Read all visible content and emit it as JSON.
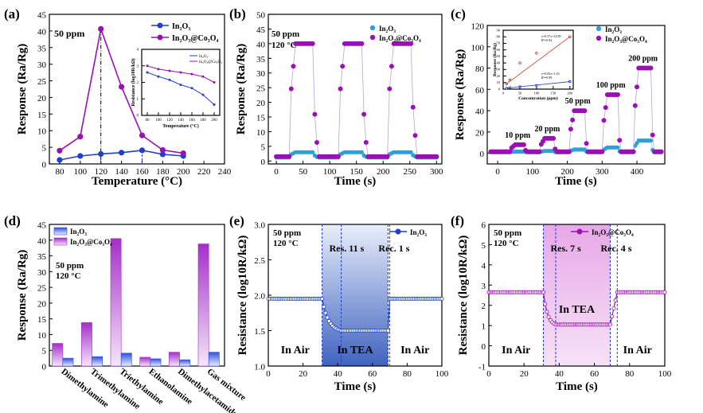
{
  "chart_data": [
    {
      "panel": "(a)",
      "type": "line",
      "annotation": "50 ppm",
      "xlabel": "Temperature (°C)",
      "ylabel": "Response (Ra/Rg)",
      "xlim": [
        70,
        240
      ],
      "ylim": [
        0,
        45
      ],
      "xticks": [
        80,
        100,
        120,
        140,
        160,
        180,
        200,
        220,
        240
      ],
      "yticks": [
        0,
        5,
        10,
        15,
        20,
        25,
        30,
        35,
        40,
        45
      ],
      "x": [
        80,
        100,
        120,
        140,
        160,
        180,
        200
      ],
      "series": [
        {
          "name": "In₂O₃",
          "color": "#1f3fcf",
          "values": [
            1.2,
            2.4,
            3.0,
            3.4,
            4.1,
            2.9,
            2.4
          ]
        },
        {
          "name": "In₂O₃@Co₃O₄",
          "color": "#9a10b4",
          "values": [
            4.0,
            8.2,
            40.6,
            23.2,
            8.6,
            4.2,
            3.2
          ]
        }
      ],
      "inset": {
        "type": "line",
        "xlabel": "Temperature (°C)",
        "ylabel": "Resistance (log10R/kΩ)",
        "xlim": [
          70,
          210
        ],
        "ylim": [
          0,
          4
        ],
        "xticks": [
          80,
          100,
          120,
          140,
          160,
          180,
          200
        ],
        "yticks": [
          0,
          1,
          2,
          3,
          4
        ],
        "x": [
          80,
          100,
          120,
          140,
          160,
          180,
          200
        ],
        "series": [
          {
            "name": "In₂O₃",
            "color": "#1f3fcf",
            "values": [
              2.6,
              2.35,
              2.15,
              1.85,
              1.65,
              1.25,
              0.65
            ]
          },
          {
            "name": "In₂O₃@Co₃O₄",
            "color": "#9a10b4",
            "values": [
              3.0,
              2.8,
              2.7,
              2.6,
              2.5,
              2.35,
              2.0
            ]
          }
        ]
      }
    },
    {
      "panel": "(b)",
      "type": "line",
      "annotation": [
        "50 ppm",
        "120 °C"
      ],
      "xlabel": "Time (s)",
      "ylabel": "Response (Ra/Rg)",
      "xlim": [
        -15,
        310
      ],
      "ylim": [
        -1,
        50
      ],
      "xticks": [
        0,
        50,
        100,
        150,
        200,
        250,
        300
      ],
      "yticks": [
        0,
        5,
        10,
        15,
        20,
        25,
        30,
        35,
        40,
        45,
        50
      ],
      "series": [
        {
          "name": "In₂O₃",
          "color": "#2ea0d6",
          "baseline": 1.2,
          "peak": 3.0
        },
        {
          "name": "In₂O₃@Co₃O₄",
          "color": "#9a10b4",
          "baseline": 1.5,
          "peak": 40.0
        }
      ],
      "pulses": [
        [
          28,
          70
        ],
        [
          120,
          162
        ],
        [
          212,
          255
        ]
      ]
    },
    {
      "panel": "(c)",
      "type": "line",
      "xlabel": "Time (s)",
      "ylabel": "Response (Ra/Rg)",
      "xlim": [
        -30,
        480
      ],
      "ylim": [
        -10,
        120
      ],
      "xticks": [
        0,
        100,
        200,
        300,
        400
      ],
      "yticks": [
        0,
        20,
        40,
        60,
        80,
        100,
        120
      ],
      "series": [
        {
          "name": "In₂O₃",
          "color": "#2ea0d6",
          "baseline": 1.0,
          "peaks": [
            1.6,
            2.2,
            3.5,
            5.5,
            12.0
          ]
        },
        {
          "name": "In₂O₃@Co₃O₄",
          "color": "#9a10b4",
          "baseline": 1.5,
          "peaks": [
            8.0,
            14.0,
            40.0,
            55.0,
            80.0
          ]
        }
      ],
      "concentrations": [
        "10 ppm",
        "20 ppm",
        "50 ppm",
        "100 ppm",
        "200 ppm"
      ],
      "pulses": [
        [
          40,
          75
        ],
        [
          125,
          160
        ],
        [
          210,
          250
        ],
        [
          305,
          345
        ],
        [
          395,
          440
        ]
      ],
      "inset": {
        "type": "scatter",
        "xlabel": "Concentration (ppm)",
        "ylabel": "Response (Ra/Rg)",
        "xlim": [
          0,
          210
        ],
        "ylim": [
          0,
          90
        ],
        "xticks": [
          0,
          50,
          100,
          150,
          200
        ],
        "yticks": [
          0,
          10,
          20,
          30,
          40,
          50,
          60,
          70,
          80,
          90
        ],
        "x": [
          10,
          20,
          50,
          100,
          200
        ],
        "series": [
          {
            "name": "In₂O₃",
            "color": "#1f3fcf",
            "values": [
              1.5,
              2.2,
              3.5,
              5.5,
              11.5
            ],
            "fit": "y=0.05x+1.43",
            "r2": "R²=0.99"
          },
          {
            "name": "In₂O₃@Co₃O₄",
            "color": "#c0392b",
            "values": [
              8,
              14,
              40,
              55,
              80
            ],
            "fit": "y=0.37x+12.89",
            "r2": "R²=0.94"
          }
        ]
      }
    },
    {
      "panel": "(d)",
      "type": "bar",
      "annotation": [
        "50 ppm",
        "120 °C"
      ],
      "ylabel": "Response (Ra/Rg)",
      "ylim": [
        0,
        45
      ],
      "yticks": [
        0,
        5,
        10,
        15,
        20,
        25,
        30,
        35,
        40,
        45
      ],
      "categories": [
        "Dimethylamine",
        "Trimethylamine",
        "Triethylamine",
        "Ethanolamine",
        "Dimethylacetamide",
        "Gas mixture"
      ],
      "series": [
        {
          "name": "In₂O₃@Co₃O₄",
          "color": "#a52fc9",
          "values": [
            7.2,
            13.8,
            40.5,
            2.8,
            4.4,
            38.8
          ]
        },
        {
          "name": "In₂O₃",
          "color": "#3150e0",
          "values": [
            2.5,
            3.0,
            4.1,
            2.3,
            2.0,
            4.4
          ]
        }
      ],
      "legend": [
        "In₂O₃",
        "In₂O₃@Co₃O₄"
      ]
    },
    {
      "panel": "(e)",
      "type": "line",
      "annotation": [
        "50 ppm",
        "120 °C"
      ],
      "xlabel": "Time (s)",
      "ylabel": "Resistance (log10R/kΩ)",
      "xlim": [
        0,
        100
      ],
      "ylim": [
        1.0,
        3.0
      ],
      "xticks": [
        0,
        20,
        40,
        60,
        80,
        100
      ],
      "yticks": [
        1.0,
        1.5,
        2.0,
        2.5,
        3.0
      ],
      "series": [
        {
          "name": "In₂O₃",
          "color": "#1f3fcf",
          "baseline": 1.95,
          "low": 1.5
        }
      ],
      "gas_on": [
        31,
        69
      ],
      "response_time": "Res. 11 s",
      "recovery_time": "Rec. 1 s",
      "regions": [
        "In Air",
        "In TEA",
        "In Air"
      ]
    },
    {
      "panel": "(f)",
      "type": "line",
      "annotation": [
        "50 ppm",
        "120 °C"
      ],
      "xlabel": "Time (s)",
      "ylabel": "Resistance (log10R/kΩ)",
      "xlim": [
        0,
        100
      ],
      "ylim": [
        -1,
        6
      ],
      "xticks": [
        0,
        20,
        40,
        60,
        80,
        100
      ],
      "yticks": [
        -1,
        0,
        1,
        2,
        3,
        4,
        5,
        6
      ],
      "series": [
        {
          "name": "In₂O₃@Co₃O₄",
          "color": "#9a10b4",
          "baseline": 2.65,
          "high": 1.05
        }
      ],
      "gas_on": [
        31,
        69
      ],
      "response_time": "Res. 7 s",
      "recovery_time": "Rec. 4 s",
      "regions": [
        "In Air",
        "In TEA",
        "In Air"
      ]
    }
  ]
}
